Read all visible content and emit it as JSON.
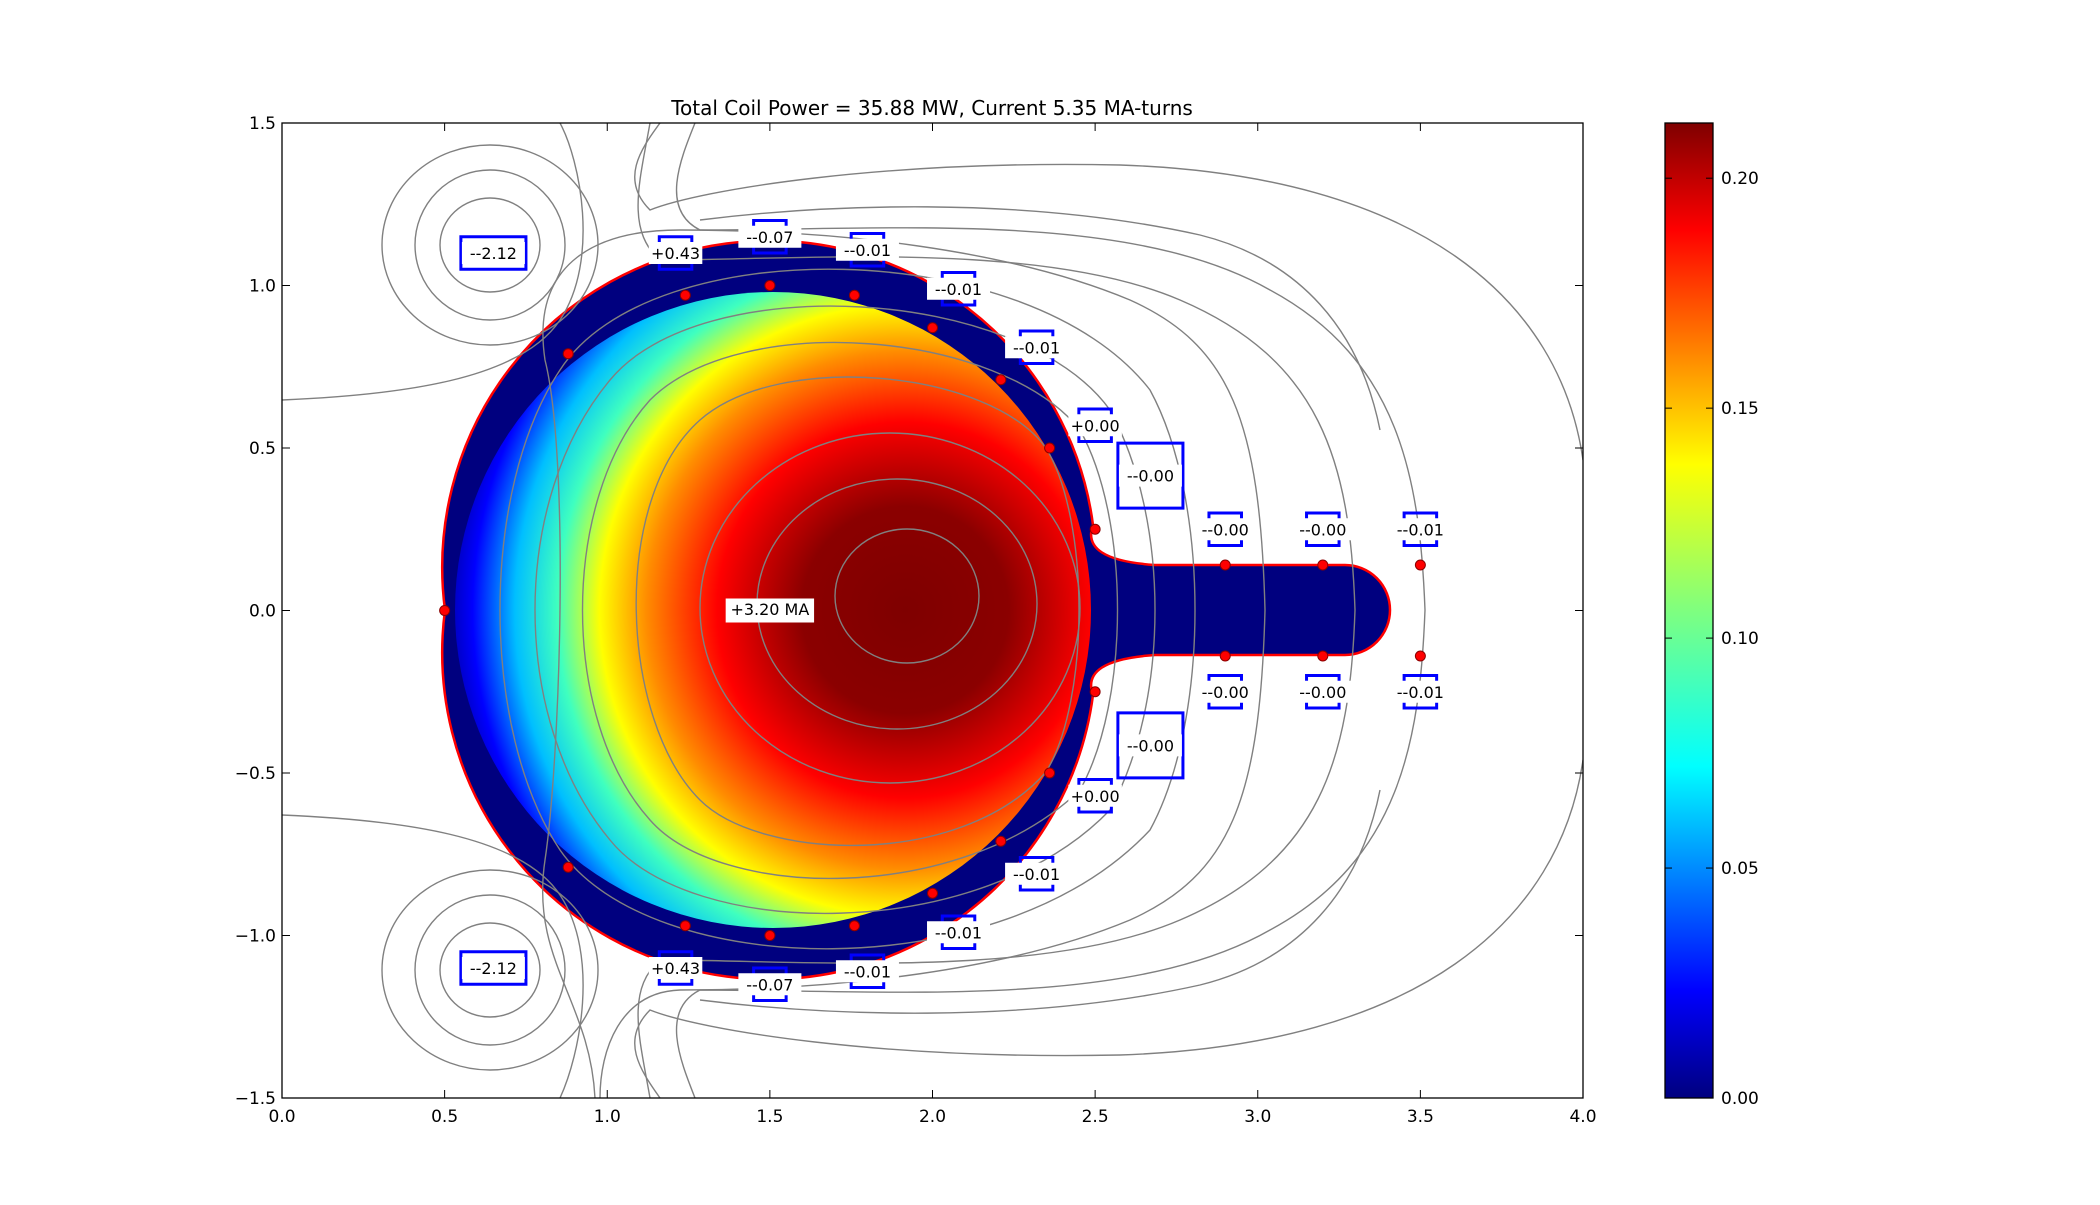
{
  "chart_data": [
    {
      "type": "heatmap",
      "title": "Total Coil Power = 35.88 MW, Current 5.35 MA-turns",
      "xlabel": "",
      "ylabel": "",
      "xlim": [
        0.0,
        4.0
      ],
      "ylim": [
        -1.5,
        1.5
      ],
      "x_ticks": [
        "0.0",
        "0.5",
        "1.0",
        "1.5",
        "2.0",
        "2.5",
        "3.0",
        "3.5",
        "4.0"
      ],
      "y_ticks": [
        "1.5",
        "1.0",
        "0.5",
        "0.0",
        "−0.5",
        "−1.0",
        "−1.5"
      ],
      "grid": false,
      "colormap": "jet",
      "plasma": {
        "label": "+3.20 MA",
        "label_x": 1.5,
        "label_y": 0.0,
        "center": [
          1.9,
          0.0
        ],
        "peak_value": 0.21,
        "boundary_color": "#ff0000",
        "main_radius": 1.0,
        "main_center": [
          1.5,
          0.0
        ],
        "divertor_leg_x": [
          2.65,
          3.3
        ],
        "divertor_leg_half_height": 0.14
      },
      "coils": [
        {
          "label": "--2.12",
          "x": 0.65,
          "y": 1.1,
          "w": 0.2,
          "h": 0.1
        },
        {
          "label": "--2.12",
          "x": 0.65,
          "y": -1.1,
          "w": 0.2,
          "h": 0.1
        },
        {
          "label": "+0.43",
          "x": 1.21,
          "y": 1.1,
          "w": 0.1,
          "h": 0.1
        },
        {
          "label": "+0.43",
          "x": 1.21,
          "y": -1.1,
          "w": 0.1,
          "h": 0.1
        },
        {
          "label": "--0.07",
          "x": 1.5,
          "y": 1.15,
          "w": 0.1,
          "h": 0.1
        },
        {
          "label": "--0.07",
          "x": 1.5,
          "y": -1.15,
          "w": 0.1,
          "h": 0.1
        },
        {
          "label": "--0.01",
          "x": 1.8,
          "y": 1.11,
          "w": 0.1,
          "h": 0.1
        },
        {
          "label": "--0.01",
          "x": 1.8,
          "y": -1.11,
          "w": 0.1,
          "h": 0.1
        },
        {
          "label": "--0.01",
          "x": 2.08,
          "y": 0.99,
          "w": 0.1,
          "h": 0.1
        },
        {
          "label": "--0.01",
          "x": 2.08,
          "y": -0.99,
          "w": 0.1,
          "h": 0.1
        },
        {
          "label": "--0.01",
          "x": 2.32,
          "y": 0.81,
          "w": 0.1,
          "h": 0.1
        },
        {
          "label": "--0.01",
          "x": 2.32,
          "y": -0.81,
          "w": 0.1,
          "h": 0.1
        },
        {
          "label": "+0.00",
          "x": 2.5,
          "y": 0.57,
          "w": 0.1,
          "h": 0.1
        },
        {
          "label": "+0.00",
          "x": 2.5,
          "y": -0.57,
          "w": 0.1,
          "h": 0.1
        },
        {
          "label": "--0.00",
          "x": 2.67,
          "y": 0.415,
          "w": 0.2,
          "h": 0.2
        },
        {
          "label": "--0.00",
          "x": 2.67,
          "y": -0.415,
          "w": 0.2,
          "h": 0.2
        },
        {
          "label": "--0.00",
          "x": 2.9,
          "y": 0.25,
          "w": 0.1,
          "h": 0.1
        },
        {
          "label": "--0.00",
          "x": 2.9,
          "y": -0.25,
          "w": 0.1,
          "h": 0.1
        },
        {
          "label": "--0.00",
          "x": 3.2,
          "y": 0.25,
          "w": 0.1,
          "h": 0.1
        },
        {
          "label": "--0.00",
          "x": 3.2,
          "y": -0.25,
          "w": 0.1,
          "h": 0.1
        },
        {
          "label": "--0.01",
          "x": 3.5,
          "y": 0.25,
          "w": 0.1,
          "h": 0.1
        },
        {
          "label": "--0.01",
          "x": 3.5,
          "y": -0.25,
          "w": 0.1,
          "h": 0.1
        }
      ],
      "markers": [
        [
          0.5,
          0.0
        ],
        [
          0.88,
          0.79
        ],
        [
          0.88,
          -0.79
        ],
        [
          1.24,
          0.97
        ],
        [
          1.24,
          -0.97
        ],
        [
          1.5,
          1.0
        ],
        [
          1.5,
          -1.0
        ],
        [
          1.76,
          0.97
        ],
        [
          1.76,
          -0.97
        ],
        [
          2.0,
          0.87
        ],
        [
          2.0,
          -0.87
        ],
        [
          2.21,
          0.71
        ],
        [
          2.21,
          -0.71
        ],
        [
          2.36,
          0.5
        ],
        [
          2.36,
          -0.5
        ],
        [
          2.5,
          0.25
        ],
        [
          2.5,
          -0.25
        ],
        [
          2.9,
          0.14
        ],
        [
          2.9,
          -0.14
        ],
        [
          3.2,
          0.14
        ],
        [
          3.2,
          -0.14
        ],
        [
          3.5,
          0.14
        ],
        [
          3.5,
          -0.14
        ]
      ],
      "marker_color": "#ff0000",
      "coil_color": "#0000ff",
      "contour_color": "#808080"
    },
    {
      "type": "colorbar",
      "min": 0.0,
      "max": 0.212,
      "ticks": [
        0.0,
        0.05,
        0.1,
        0.15,
        0.2
      ],
      "tick_labels": [
        "0.00",
        "0.05",
        "0.10",
        "0.15",
        "0.20"
      ],
      "colormap": "jet"
    }
  ]
}
